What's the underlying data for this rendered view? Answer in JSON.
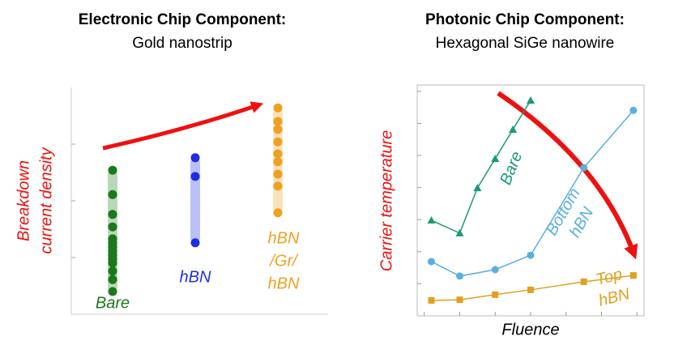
{
  "chart_data": [
    {
      "type": "strip",
      "title": "Electronic Chip Component:",
      "subtitle": "Gold nanostrip",
      "ylabel": [
        "Breakdown",
        "current density"
      ],
      "ylabel_color": "#ee1111",
      "ylim": [
        0,
        4
      ],
      "yticks": [
        1,
        2,
        3
      ],
      "categories": [
        [
          "Bare"
        ],
        [
          "hBN"
        ],
        [
          "hBN",
          "/Gr/",
          "hBN"
        ]
      ],
      "series": [
        {
          "color": "#1a7a1a",
          "values": [
            2.54,
            2.11,
            1.76,
            1.54,
            1.33,
            1.26,
            1.19,
            1.11,
            1.04,
            0.97,
            0.9,
            0.76,
            0.61,
            0.4
          ]
        },
        {
          "color": "#1f2fe0",
          "values": [
            2.76,
            2.43,
            1.26
          ]
        },
        {
          "color": "#f0a020",
          "values": [
            3.64,
            3.4,
            3.26,
            3.04,
            2.83,
            2.69,
            2.47,
            2.26,
            1.79
          ]
        }
      ]
    },
    {
      "type": "line",
      "title": "Photonic Chip Component:",
      "subtitle": "Hexagonal SiGe nanowire",
      "xlabel": "Fluence",
      "ylabel": "Carrier temperature",
      "ylabel_color": "#ee1111",
      "xlim": [
        -0.2,
        6.2
      ],
      "xticks": [
        0,
        1,
        2,
        3,
        4,
        5,
        6
      ],
      "ylim": [
        0,
        7.2
      ],
      "yticks": [
        1,
        2,
        3,
        4,
        5,
        6,
        7
      ],
      "series": [
        {
          "label": [
            "Bare"
          ],
          "color": "#1a9a78",
          "marker": "triangle",
          "x": [
            0.2,
            1,
            1.5,
            2,
            2.5,
            3
          ],
          "values": [
            2.98,
            2.58,
            3.99,
            4.9,
            5.81,
            6.72
          ]
        },
        {
          "label": [
            "Bottom",
            "hBN"
          ],
          "color": "#5aaee0",
          "marker": "circle",
          "x": [
            0.2,
            1,
            2,
            3,
            4.5,
            5.9
          ],
          "values": [
            1.69,
            1.24,
            1.44,
            1.89,
            4.62,
            6.41
          ]
        },
        {
          "label": [
            "Top",
            "hBN"
          ],
          "color": "#e0a020",
          "marker": "square",
          "x": [
            0.2,
            1,
            2,
            3,
            4.5,
            5.9
          ],
          "values": [
            0.48,
            0.5,
            0.66,
            0.81,
            1.06,
            1.26
          ]
        }
      ]
    }
  ]
}
